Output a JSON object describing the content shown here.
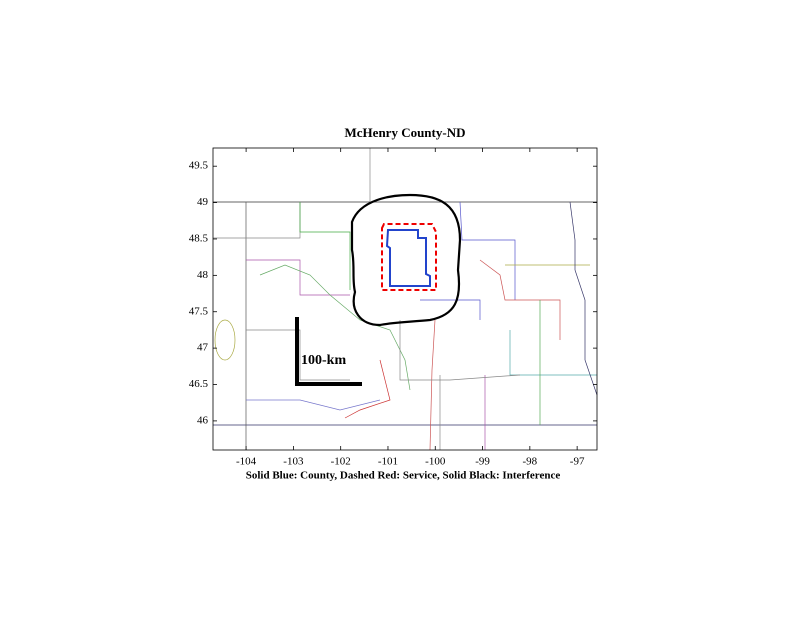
{
  "map": {
    "title": "McHenry County-ND",
    "caption": "Solid Blue: County, Dashed Red: Service, Solid Black: Interference",
    "scale_label": "100-km",
    "xlim": [
      -104.7,
      -96.58
    ],
    "ylim": [
      45.6,
      49.75
    ],
    "xticks": [
      -104,
      -103,
      -102,
      -101,
      -100,
      -99,
      -98,
      -97
    ],
    "yticks": [
      46,
      46.5,
      47,
      47.5,
      48,
      48.5,
      49,
      49.5
    ]
  }
}
